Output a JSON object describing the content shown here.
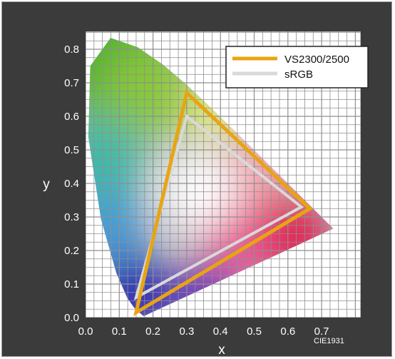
{
  "chart_data": {
    "type": "scatter",
    "title": "",
    "xlabel": "x",
    "ylabel": "y",
    "xlim": [
      0.0,
      0.8
    ],
    "ylim": [
      0.0,
      0.85
    ],
    "x_ticks": [
      "0.0",
      "0.1",
      "0.2",
      "0.3",
      "0.4",
      "0.5",
      "0.6",
      "0.7"
    ],
    "y_ticks": [
      "0.0",
      "0.1",
      "0.2",
      "0.3",
      "0.4",
      "0.5",
      "0.6",
      "0.7",
      "0.8"
    ],
    "grid": true,
    "legend_position": "top-right",
    "footnote": "CIE1931",
    "series": [
      {
        "name": "VS2300/2500",
        "color": "#e8a413",
        "points": [
          [
            0.665,
            0.325
          ],
          [
            0.3,
            0.67
          ],
          [
            0.15,
            0.015
          ]
        ]
      },
      {
        "name": "sRGB",
        "color": "#d9d9d9",
        "points": [
          [
            0.64,
            0.33
          ],
          [
            0.3,
            0.6
          ],
          [
            0.15,
            0.06
          ]
        ]
      }
    ],
    "spectral_locus": [
      [
        0.1741,
        0.005
      ],
      [
        0.1733,
        0.0048
      ],
      [
        0.1726,
        0.0048
      ],
      [
        0.1714,
        0.0051
      ],
      [
        0.1689,
        0.0069
      ],
      [
        0.1644,
        0.0109
      ],
      [
        0.1566,
        0.0177
      ],
      [
        0.144,
        0.0297
      ],
      [
        0.1241,
        0.0578
      ],
      [
        0.0913,
        0.1327
      ],
      [
        0.0454,
        0.295
      ],
      [
        0.0082,
        0.5384
      ],
      [
        0.0139,
        0.7502
      ],
      [
        0.0743,
        0.8338
      ],
      [
        0.1547,
        0.8059
      ],
      [
        0.2296,
        0.7543
      ],
      [
        0.3016,
        0.6923
      ],
      [
        0.3731,
        0.6245
      ],
      [
        0.4441,
        0.5547
      ],
      [
        0.5125,
        0.4866
      ],
      [
        0.5752,
        0.4242
      ],
      [
        0.627,
        0.3725
      ],
      [
        0.6658,
        0.334
      ],
      [
        0.6915,
        0.3083
      ],
      [
        0.7079,
        0.292
      ],
      [
        0.7347,
        0.2653
      ]
    ]
  }
}
